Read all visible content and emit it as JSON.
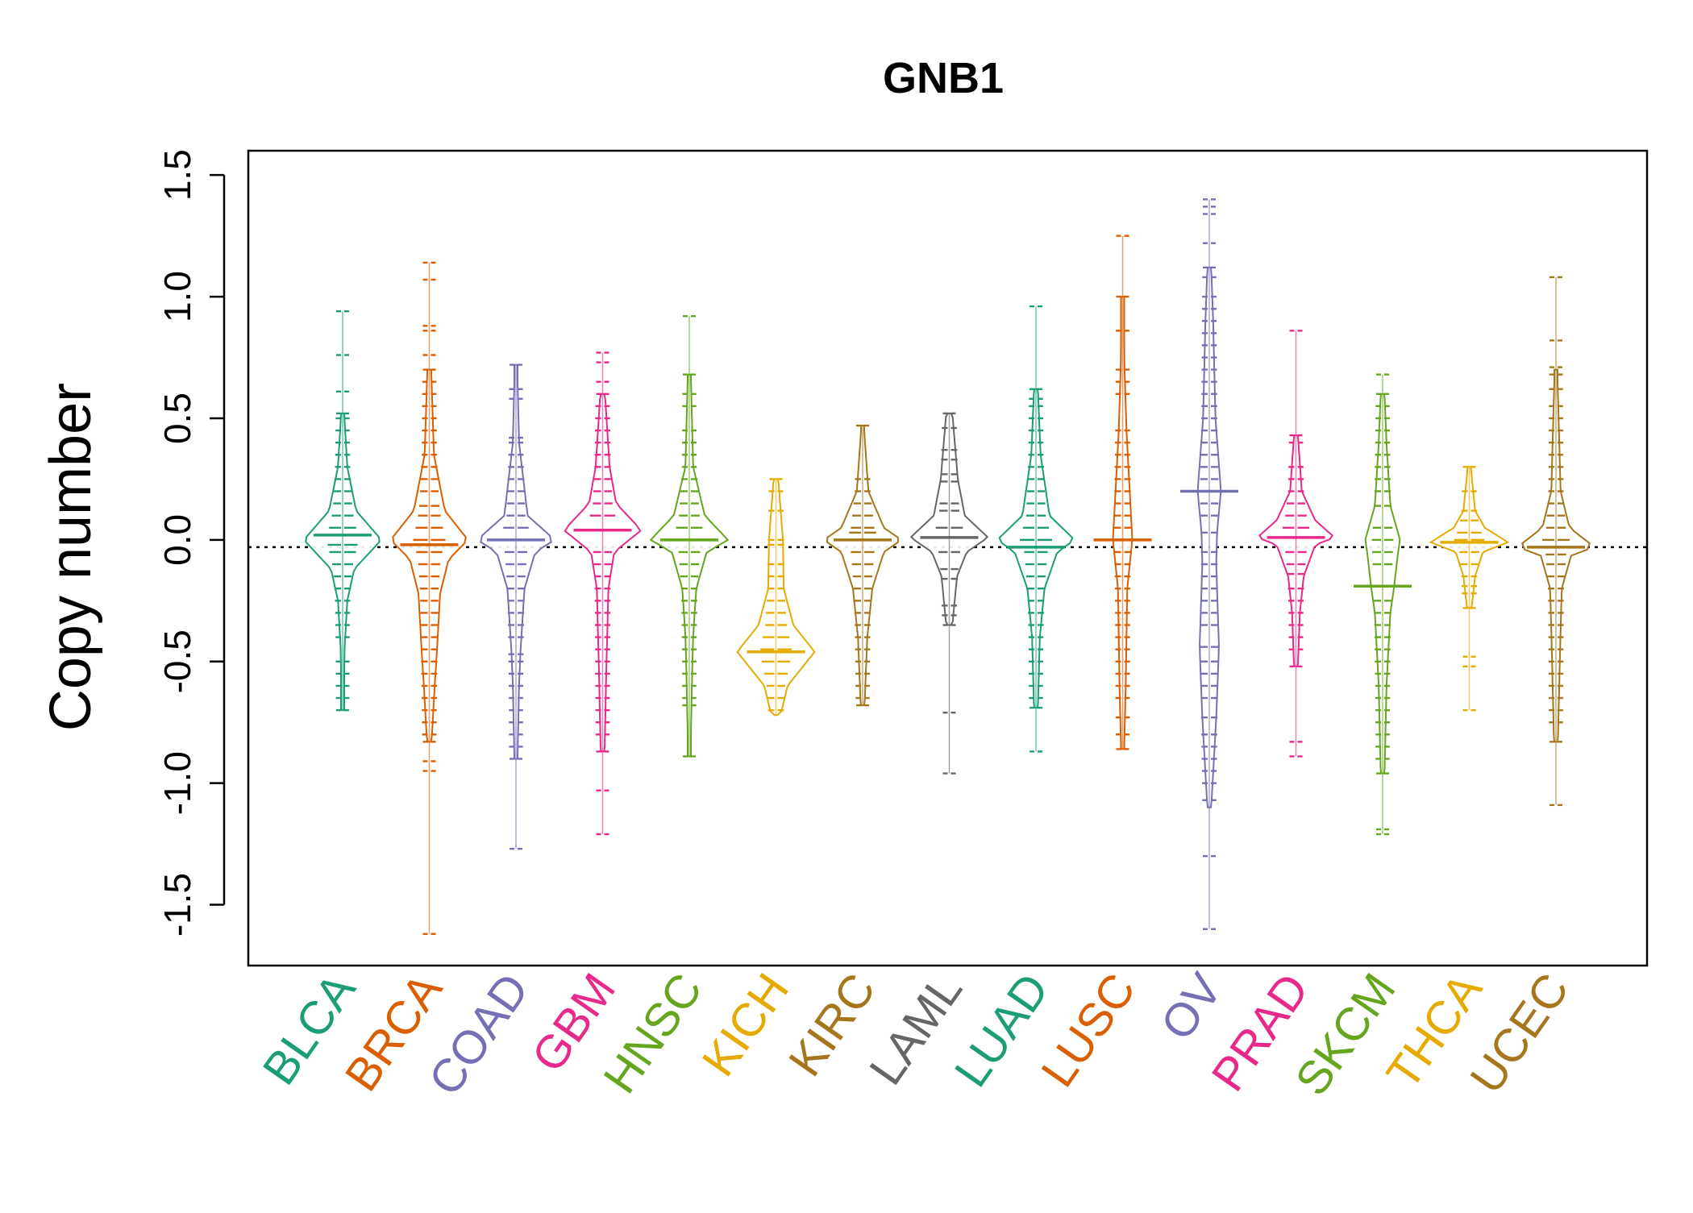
{
  "chart_data": {
    "type": "beanplot",
    "title": "GNB1",
    "xlabel": "",
    "ylabel": "Copy number",
    "ylim": [
      -1.75,
      1.6
    ],
    "yticks": [
      -1.5,
      -1.0,
      -0.5,
      0.0,
      0.5,
      1.0,
      1.5
    ],
    "ytick_labels": [
      "-1.5",
      "-1.0",
      "-0.5",
      "0.0",
      "0.5",
      "1.0",
      "1.5"
    ],
    "reference_line": -0.03,
    "grid": false,
    "legend": "none",
    "categories": [
      "BLCA",
      "BRCA",
      "COAD",
      "GBM",
      "HNSC",
      "KICH",
      "KIRC",
      "LAML",
      "LUAD",
      "LUSC",
      "OV",
      "PRAD",
      "SKCM",
      "THCA",
      "UCEC"
    ],
    "series": [
      {
        "category": "BLCA",
        "color": "#1B9E77",
        "min": -0.7,
        "max": 0.94,
        "median": 0.02,
        "density": [
          [
            -0.7,
            0.03
          ],
          [
            -0.45,
            0.05
          ],
          [
            -0.25,
            0.12
          ],
          [
            -0.12,
            0.3
          ],
          [
            0.0,
            1.0
          ],
          [
            0.12,
            0.35
          ],
          [
            0.3,
            0.12
          ],
          [
            0.52,
            0.04
          ]
        ],
        "points": [
          0.94,
          0.76,
          0.61,
          0.52,
          0.5,
          0.45,
          0.4,
          0.35,
          0.3,
          0.25,
          0.2,
          0.15,
          0.1,
          0.05,
          0.02,
          -0.02,
          -0.05,
          -0.1,
          -0.15,
          -0.2,
          -0.25,
          -0.3,
          -0.35,
          -0.4,
          -0.5,
          -0.55,
          -0.6,
          -0.65,
          -0.7
        ]
      },
      {
        "category": "BRCA",
        "color": "#D95F02",
        "min": -1.62,
        "max": 1.14,
        "median": -0.02,
        "density": [
          [
            -0.83,
            0.06
          ],
          [
            -0.6,
            0.14
          ],
          [
            -0.45,
            0.2
          ],
          [
            -0.22,
            0.28
          ],
          [
            -0.08,
            0.5
          ],
          [
            0.0,
            1.0
          ],
          [
            0.12,
            0.4
          ],
          [
            0.35,
            0.12
          ],
          [
            0.7,
            0.05
          ]
        ],
        "points": [
          1.14,
          1.07,
          0.88,
          0.86,
          0.76,
          0.7,
          0.65,
          0.6,
          0.55,
          0.5,
          0.45,
          0.4,
          0.35,
          0.3,
          0.25,
          0.2,
          0.14,
          0.1,
          0.05,
          0.0,
          -0.05,
          -0.1,
          -0.15,
          -0.2,
          -0.25,
          -0.3,
          -0.35,
          -0.4,
          -0.45,
          -0.5,
          -0.55,
          -0.6,
          -0.65,
          -0.7,
          -0.75,
          -0.8,
          -0.83,
          -0.91,
          -0.95,
          -1.62
        ]
      },
      {
        "category": "COAD",
        "color": "#7570B3",
        "min": -1.27,
        "max": 0.72,
        "median": 0.0,
        "density": [
          [
            -0.9,
            0.04
          ],
          [
            -0.6,
            0.08
          ],
          [
            -0.45,
            0.12
          ],
          [
            -0.2,
            0.22
          ],
          [
            -0.05,
            0.5
          ],
          [
            0.0,
            1.0
          ],
          [
            0.1,
            0.3
          ],
          [
            0.4,
            0.08
          ],
          [
            0.72,
            0.03
          ]
        ],
        "points": [
          0.72,
          0.62,
          0.58,
          0.42,
          0.4,
          0.35,
          0.3,
          0.25,
          0.2,
          0.15,
          0.1,
          0.05,
          0.0,
          -0.05,
          -0.1,
          -0.15,
          -0.2,
          -0.25,
          -0.3,
          -0.35,
          -0.4,
          -0.47,
          -0.5,
          -0.55,
          -0.6,
          -0.65,
          -0.7,
          -0.75,
          -0.8,
          -0.85,
          -0.9,
          -1.27
        ]
      },
      {
        "category": "GBM",
        "color": "#E7298A",
        "min": -1.21,
        "max": 0.77,
        "median": 0.04,
        "density": [
          [
            -0.87,
            0.05
          ],
          [
            -0.5,
            0.1
          ],
          [
            -0.2,
            0.15
          ],
          [
            -0.05,
            0.3
          ],
          [
            0.04,
            1.0
          ],
          [
            0.15,
            0.35
          ],
          [
            0.3,
            0.18
          ],
          [
            0.6,
            0.06
          ]
        ],
        "points": [
          0.77,
          0.73,
          0.65,
          0.6,
          0.55,
          0.5,
          0.45,
          0.4,
          0.35,
          0.3,
          0.25,
          0.2,
          0.15,
          0.1,
          0.04,
          -0.05,
          -0.1,
          -0.15,
          -0.2,
          -0.25,
          -0.3,
          -0.35,
          -0.4,
          -0.45,
          -0.5,
          -0.55,
          -0.6,
          -0.65,
          -0.7,
          -0.75,
          -0.8,
          -0.87,
          -1.03,
          -1.21
        ]
      },
      {
        "category": "HNSC",
        "color": "#66A61E",
        "min": -0.89,
        "max": 0.92,
        "median": 0.0,
        "density": [
          [
            -0.89,
            0.03
          ],
          [
            -0.5,
            0.08
          ],
          [
            -0.4,
            0.1
          ],
          [
            -0.2,
            0.18
          ],
          [
            -0.05,
            0.45
          ],
          [
            0.0,
            1.0
          ],
          [
            0.1,
            0.4
          ],
          [
            0.3,
            0.1
          ],
          [
            0.68,
            0.04
          ]
        ],
        "points": [
          0.92,
          0.68,
          0.6,
          0.55,
          0.45,
          0.4,
          0.35,
          0.3,
          0.25,
          0.2,
          0.15,
          0.1,
          0.05,
          0.0,
          -0.05,
          -0.1,
          -0.15,
          -0.2,
          -0.25,
          -0.3,
          -0.35,
          -0.4,
          -0.45,
          -0.5,
          -0.55,
          -0.6,
          -0.65,
          -0.68,
          -0.89
        ]
      },
      {
        "category": "KICH",
        "color": "#E6AB02",
        "min": -0.72,
        "max": 0.25,
        "median": -0.46,
        "density": [
          [
            -0.72,
            0.12
          ],
          [
            -0.6,
            0.3
          ],
          [
            -0.46,
            1.0
          ],
          [
            -0.35,
            0.45
          ],
          [
            -0.2,
            0.2
          ],
          [
            0.0,
            0.18
          ],
          [
            0.25,
            0.06
          ]
        ],
        "points": [
          0.25,
          0.2,
          0.12,
          0.0,
          -0.02,
          -0.1,
          -0.15,
          -0.2,
          -0.25,
          -0.3,
          -0.35,
          -0.4,
          -0.45,
          -0.5,
          -0.55,
          -0.6,
          -0.65,
          -0.7
        ]
      },
      {
        "category": "KIRC",
        "color": "#A6761D",
        "min": -0.68,
        "max": 0.47,
        "median": 0.0,
        "density": [
          [
            -0.68,
            0.05
          ],
          [
            -0.4,
            0.12
          ],
          [
            -0.2,
            0.25
          ],
          [
            -0.05,
            0.55
          ],
          [
            0.0,
            1.0
          ],
          [
            0.05,
            0.55
          ],
          [
            0.2,
            0.15
          ],
          [
            0.47,
            0.03
          ]
        ],
        "points": [
          0.47,
          0.25,
          0.2,
          0.15,
          0.1,
          0.05,
          0.03,
          0.0,
          -0.05,
          -0.1,
          -0.15,
          -0.2,
          -0.25,
          -0.3,
          -0.35,
          -0.4,
          -0.45,
          -0.5,
          -0.55,
          -0.6,
          -0.65,
          -0.68
        ]
      },
      {
        "category": "LAML",
        "color": "#666666",
        "min": -0.96,
        "max": 0.52,
        "median": 0.01,
        "density": [
          [
            -0.35,
            0.08
          ],
          [
            -0.15,
            0.2
          ],
          [
            -0.05,
            0.45
          ],
          [
            0.01,
            1.0
          ],
          [
            0.1,
            0.4
          ],
          [
            0.25,
            0.22
          ],
          [
            0.52,
            0.08
          ]
        ],
        "points": [
          0.52,
          0.46,
          0.37,
          0.33,
          0.27,
          0.24,
          0.15,
          0.12,
          0.05,
          0.01,
          -0.05,
          -0.12,
          -0.16,
          -0.27,
          -0.31,
          -0.35,
          -0.71,
          -0.96
        ]
      },
      {
        "category": "LUAD",
        "color": "#1B9E77",
        "min": -0.87,
        "max": 0.96,
        "median": -0.03,
        "density": [
          [
            -0.69,
            0.05
          ],
          [
            -0.4,
            0.1
          ],
          [
            -0.2,
            0.22
          ],
          [
            -0.05,
            0.55
          ],
          [
            0.0,
            1.0
          ],
          [
            0.1,
            0.35
          ],
          [
            0.35,
            0.12
          ],
          [
            0.62,
            0.05
          ]
        ],
        "points": [
          0.96,
          0.62,
          0.58,
          0.55,
          0.5,
          0.45,
          0.4,
          0.35,
          0.3,
          0.25,
          0.2,
          0.15,
          0.1,
          0.05,
          0.0,
          -0.03,
          -0.05,
          -0.1,
          -0.15,
          -0.2,
          -0.25,
          -0.3,
          -0.35,
          -0.4,
          -0.45,
          -0.5,
          -0.55,
          -0.6,
          -0.65,
          -0.69,
          -0.87
        ]
      },
      {
        "category": "LUSC",
        "color": "#D95F02",
        "min": -0.86,
        "max": 1.25,
        "median": 0.0,
        "density": [
          [
            -0.86,
            0.04
          ],
          [
            -0.6,
            0.08
          ],
          [
            -0.2,
            0.12
          ],
          [
            0.0,
            0.25
          ],
          [
            0.15,
            0.2
          ],
          [
            0.45,
            0.1
          ],
          [
            0.7,
            0.05
          ],
          [
            1.0,
            0.03
          ]
        ],
        "points": [
          1.25,
          1.0,
          0.86,
          0.7,
          0.65,
          0.6,
          0.45,
          0.4,
          0.35,
          0.3,
          0.25,
          0.2,
          0.15,
          0.1,
          0.05,
          0.0,
          -0.05,
          -0.1,
          -0.15,
          -0.2,
          -0.25,
          -0.3,
          -0.35,
          -0.4,
          -0.45,
          -0.5,
          -0.55,
          -0.6,
          -0.65,
          -0.73,
          -0.8,
          -0.86
        ]
      },
      {
        "category": "OV",
        "color": "#7570B3",
        "min": -1.6,
        "max": 1.4,
        "median": 0.2,
        "density": [
          [
            -1.1,
            0.05
          ],
          [
            -0.73,
            0.18
          ],
          [
            -0.44,
            0.25
          ],
          [
            -0.1,
            0.18
          ],
          [
            0.03,
            0.2
          ],
          [
            0.2,
            0.3
          ],
          [
            0.5,
            0.16
          ],
          [
            0.9,
            0.1
          ],
          [
            1.12,
            0.05
          ]
        ],
        "points": [
          1.4,
          1.37,
          1.34,
          1.22,
          1.12,
          1.08,
          1.0,
          0.95,
          0.9,
          0.85,
          0.8,
          0.75,
          0.7,
          0.65,
          0.6,
          0.55,
          0.5,
          0.45,
          0.4,
          0.35,
          0.3,
          0.25,
          0.2,
          0.15,
          0.1,
          0.03,
          -0.05,
          -0.1,
          -0.15,
          -0.2,
          -0.25,
          -0.3,
          -0.35,
          -0.44,
          -0.5,
          -0.55,
          -0.6,
          -0.65,
          -0.73,
          -0.8,
          -0.85,
          -0.9,
          -0.95,
          -1.0,
          -1.07,
          -1.3,
          -1.6
        ]
      },
      {
        "category": "PRAD",
        "color": "#E7298A",
        "min": -0.89,
        "max": 0.86,
        "median": 0.01,
        "density": [
          [
            -0.52,
            0.05
          ],
          [
            -0.3,
            0.1
          ],
          [
            -0.15,
            0.2
          ],
          [
            -0.02,
            0.5
          ],
          [
            0.01,
            1.0
          ],
          [
            0.08,
            0.5
          ],
          [
            0.2,
            0.15
          ],
          [
            0.43,
            0.05
          ]
        ],
        "points": [
          0.86,
          0.43,
          0.4,
          0.3,
          0.25,
          0.2,
          0.15,
          0.1,
          0.05,
          0.01,
          -0.05,
          -0.1,
          -0.14,
          -0.2,
          -0.25,
          -0.3,
          -0.35,
          -0.4,
          -0.45,
          -0.52,
          -0.83,
          -0.89
        ]
      },
      {
        "category": "SKCM",
        "color": "#66A61E",
        "min": -1.21,
        "max": 0.68,
        "median": -0.19,
        "density": [
          [
            -0.96,
            0.05
          ],
          [
            -0.6,
            0.1
          ],
          [
            -0.3,
            0.2
          ],
          [
            -0.19,
            0.3
          ],
          [
            -0.05,
            0.4
          ],
          [
            0.0,
            0.45
          ],
          [
            0.14,
            0.2
          ],
          [
            0.4,
            0.1
          ],
          [
            0.6,
            0.05
          ]
        ],
        "points": [
          0.68,
          0.6,
          0.55,
          0.5,
          0.45,
          0.4,
          0.35,
          0.3,
          0.25,
          0.2,
          0.14,
          0.05,
          0.0,
          -0.05,
          -0.1,
          -0.19,
          -0.25,
          -0.3,
          -0.35,
          -0.4,
          -0.45,
          -0.5,
          -0.55,
          -0.6,
          -0.65,
          -0.7,
          -0.75,
          -0.8,
          -0.85,
          -0.9,
          -0.96,
          -1.19,
          -1.21
        ]
      },
      {
        "category": "THCA",
        "color": "#E6AB02",
        "min": -0.7,
        "max": 0.3,
        "median": -0.01,
        "density": [
          [
            -0.28,
            0.06
          ],
          [
            -0.15,
            0.15
          ],
          [
            -0.05,
            0.35
          ],
          [
            -0.01,
            1.0
          ],
          [
            0.05,
            0.4
          ],
          [
            0.12,
            0.15
          ],
          [
            0.3,
            0.04
          ]
        ],
        "points": [
          0.3,
          0.2,
          0.12,
          0.08,
          0.03,
          0.0,
          -0.01,
          -0.05,
          -0.1,
          -0.15,
          -0.19,
          -0.22,
          -0.28,
          -0.48,
          -0.52,
          -0.7
        ]
      },
      {
        "category": "UCEC",
        "color": "#A6761D",
        "min": -1.09,
        "max": 1.08,
        "median": -0.03,
        "density": [
          [
            -0.83,
            0.05
          ],
          [
            -0.5,
            0.1
          ],
          [
            -0.2,
            0.15
          ],
          [
            -0.06,
            0.4
          ],
          [
            -0.03,
            1.0
          ],
          [
            0.05,
            0.35
          ],
          [
            0.2,
            0.12
          ],
          [
            0.55,
            0.06
          ],
          [
            0.7,
            0.03
          ]
        ],
        "points": [
          1.08,
          0.82,
          0.71,
          0.68,
          0.62,
          0.55,
          0.5,
          0.45,
          0.4,
          0.35,
          0.3,
          0.25,
          0.2,
          0.15,
          0.1,
          0.05,
          0.0,
          -0.03,
          -0.06,
          -0.1,
          -0.15,
          -0.2,
          -0.25,
          -0.3,
          -0.35,
          -0.4,
          -0.45,
          -0.5,
          -0.55,
          -0.6,
          -0.65,
          -0.7,
          -0.75,
          -0.83,
          -1.09
        ]
      }
    ]
  }
}
